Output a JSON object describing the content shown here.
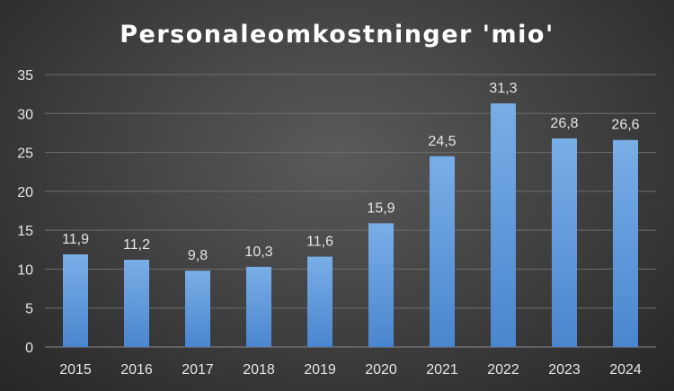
{
  "chart_data": {
    "type": "bar",
    "title": "Personaleomkostninger 'mio'",
    "categories": [
      "2015",
      "2016",
      "2017",
      "2018",
      "2019",
      "2020",
      "2021",
      "2022",
      "2023",
      "2024"
    ],
    "values": [
      11.9,
      11.2,
      9.8,
      10.3,
      11.6,
      15.9,
      24.5,
      31.3,
      26.8,
      26.6
    ],
    "value_labels": [
      "11,9",
      "11,2",
      "9,8",
      "10,3",
      "11,6",
      "15,9",
      "24,5",
      "31,3",
      "26,8",
      "26,6"
    ],
    "ylim": [
      0,
      35
    ],
    "yticks": [
      "0",
      "5",
      "10",
      "15",
      "20",
      "25",
      "30",
      "35"
    ],
    "grid": true,
    "bar_color_top": "#79aee6",
    "bar_color_bottom": "#4a86cf"
  }
}
